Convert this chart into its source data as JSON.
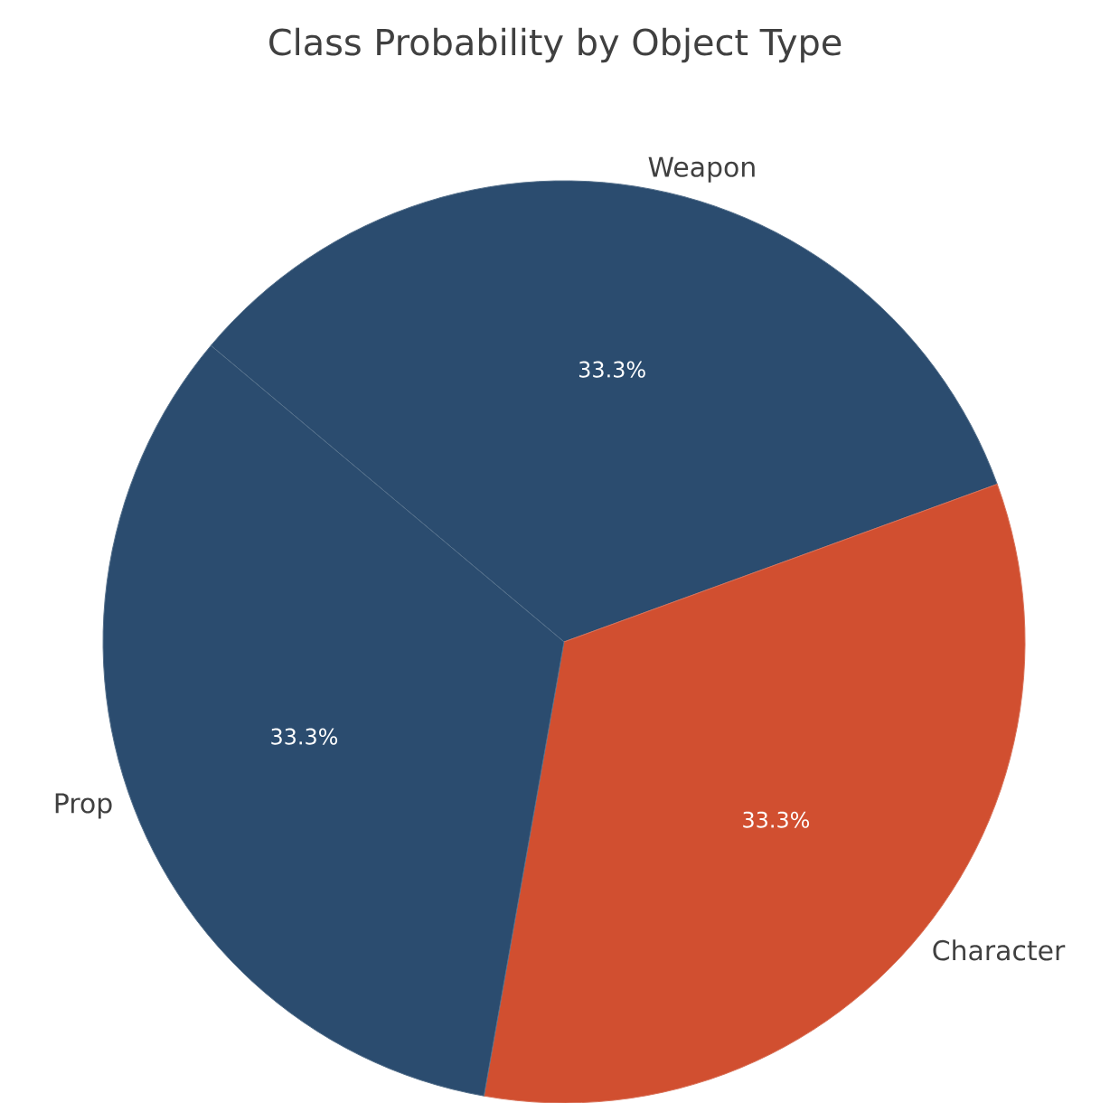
{
  "chart_data": {
    "type": "pie",
    "title": "Class Probability by Object Type",
    "categories": [
      "Weapon",
      "Character",
      "Prop"
    ],
    "values": [
      33.3,
      33.3,
      33.3
    ],
    "colors": [
      "#2b4c6f",
      "#d14f30",
      "#2b4c6f"
    ],
    "value_labels": [
      "33.3%",
      "33.3%",
      "33.3%"
    ]
  }
}
